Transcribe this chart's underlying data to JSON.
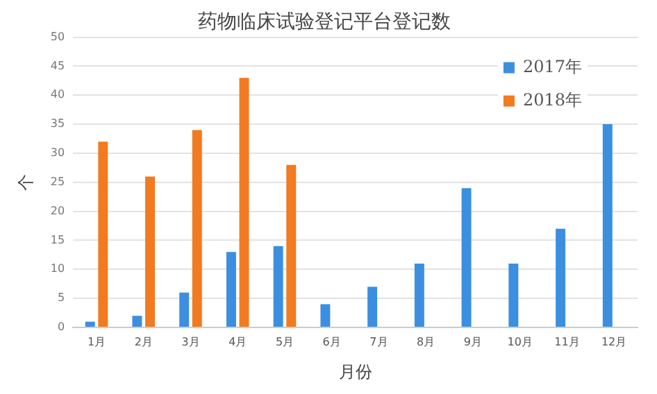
{
  "chart_data": {
    "type": "bar",
    "title": "药物临床试验登记平台登记数",
    "xlabel": "月份",
    "ylabel": "个",
    "categories": [
      "1月",
      "2月",
      "3月",
      "4月",
      "5月",
      "6月",
      "7月",
      "8月",
      "9月",
      "10月",
      "11月",
      "12月"
    ],
    "series": [
      {
        "name": "2017年",
        "color": "#3c8fe0",
        "values": [
          1,
          2,
          6,
          13,
          14,
          4,
          7,
          11,
          24,
          11,
          17,
          35
        ]
      },
      {
        "name": "2018年",
        "color": "#f27a20",
        "values": [
          32,
          26,
          34,
          43,
          28,
          null,
          null,
          null,
          null,
          null,
          null,
          null
        ]
      }
    ],
    "ylim": [
      0,
      50
    ],
    "yticks": [
      0,
      5,
      10,
      15,
      20,
      25,
      30,
      35,
      40,
      45,
      50
    ],
    "grid": "y",
    "legend": "top right"
  }
}
